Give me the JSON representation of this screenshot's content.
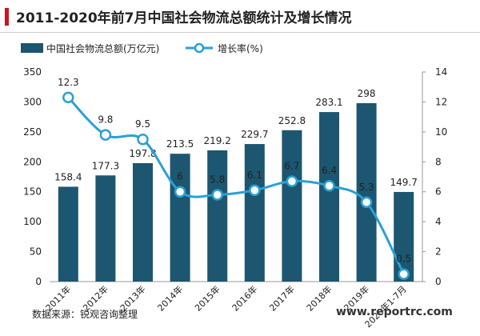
{
  "title": "2011-2020年前7月中国社会物流总额统计及增长情况",
  "source": "数据来源：锐观咨询整理",
  "watermark": "www.reportrc.com",
  "colors": {
    "bar": "#1c5670",
    "line": "#2aa1d3",
    "accent": "#c8161d",
    "text": "#222222",
    "axis": "#999999"
  },
  "chart_data": {
    "type": "bar",
    "categories": [
      "2011年",
      "2012年",
      "2013年",
      "2014年",
      "2015年",
      "2016年",
      "2017年",
      "2018年",
      "2019年",
      "2020年1-7月"
    ],
    "series": [
      {
        "name": "中国社会物流总额(万亿元)",
        "type": "bar",
        "axis": "left",
        "values": [
          158.4,
          177.3,
          197.8,
          213.5,
          219.2,
          229.7,
          252.8,
          283.1,
          298,
          149.7
        ],
        "labels": [
          "158.4",
          "177.3",
          "197.8",
          "213.5",
          "219.2",
          "229.7",
          "252.8",
          "283.1",
          "298",
          "149.7"
        ]
      },
      {
        "name": "增长率(%)",
        "type": "line",
        "axis": "right",
        "values": [
          12.3,
          9.8,
          9.5,
          6,
          5.8,
          6.1,
          6.7,
          6.4,
          5.3,
          0.5
        ],
        "labels": [
          "12.3",
          "9.8",
          "9.5",
          "6",
          "5.8",
          "6.1",
          "6.7",
          "6.4",
          "5.3",
          "0.5"
        ]
      }
    ],
    "y_left": {
      "min": 0,
      "max": 350,
      "ticks": [
        "0",
        "50",
        "100",
        "150",
        "200",
        "250",
        "300",
        "350"
      ]
    },
    "y_right": {
      "min": 0,
      "max": 14,
      "ticks": [
        "0",
        "2",
        "4",
        "6",
        "8",
        "10",
        "12",
        "14"
      ]
    },
    "legend_position": "top-left",
    "grid": false
  }
}
